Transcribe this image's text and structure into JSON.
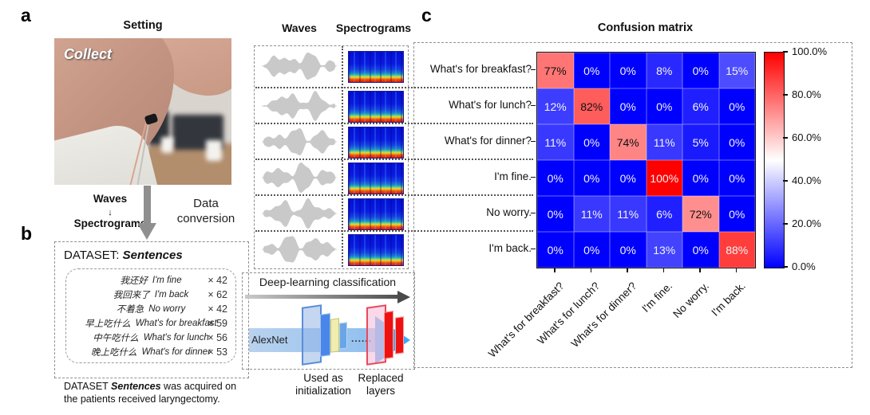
{
  "panels": {
    "a": {
      "label": "a",
      "title": "Setting",
      "photo_overlay": "Collect",
      "flow": {
        "top": "Waves",
        "arrow": "↓",
        "bottom": "Spectrograms",
        "right": "Data conversion"
      }
    },
    "b": {
      "label": "b",
      "heading_prefix": "DATASET: ",
      "heading_emph": "Sentences",
      "sentences": [
        {
          "zh": "我还好",
          "en": "I'm fine",
          "count": "× 42"
        },
        {
          "zh": "我回来了",
          "en": "I'm back",
          "count": "× 62"
        },
        {
          "zh": "不着急",
          "en": "No worry",
          "count": "× 42"
        },
        {
          "zh": "早上吃什么",
          "en": "What's for breakfast",
          "count": "× 59"
        },
        {
          "zh": "中午吃什么",
          "en": "What's for lunch",
          "count": "× 56"
        },
        {
          "zh": "晚上吃什么",
          "en": "What's for dinner",
          "count": "× 53"
        }
      ],
      "caption_prefix": "DATASET ",
      "caption_emph": "Sentences",
      "caption_suffix": " was acquired on the patients received laryngectomy."
    },
    "middle": {
      "col_headers": [
        "Waves",
        "Spectrograms"
      ],
      "rows": 6,
      "classification_label": "Deep-learning classification",
      "alexnet_label": "AlexNet",
      "dots": "......",
      "used_as": [
        "Used as",
        "initialization"
      ],
      "replaced": [
        "Replaced",
        "layers"
      ]
    },
    "c": {
      "label": "c",
      "title": "Confusion matrix"
    }
  },
  "chart_data": {
    "type": "heatmap",
    "title": "Confusion matrix",
    "categories": [
      "What's for breakfast?",
      "What's for lunch?",
      "What's for dinner?",
      "I'm fine.",
      "No worry.",
      "I'm back."
    ],
    "rows": [
      [
        77,
        0,
        0,
        8,
        0,
        15
      ],
      [
        12,
        82,
        0,
        0,
        6,
        0
      ],
      [
        11,
        0,
        74,
        11,
        5,
        0
      ],
      [
        0,
        0,
        0,
        100,
        0,
        0
      ],
      [
        0,
        11,
        11,
        6,
        72,
        0
      ],
      [
        0,
        0,
        0,
        13,
        0,
        88
      ]
    ],
    "cell_label_suffix": "%",
    "value_range": [
      0,
      100
    ],
    "colormap": "blue-white-red",
    "colorbar_ticks": [
      "100.0%",
      "80.0%",
      "60.0%",
      "40.0%",
      "20.0%",
      "0.0%"
    ],
    "legend_position": "right-colorbar"
  },
  "colors": {
    "heat_low": "#0000ff",
    "heat_mid": "#ffffff",
    "heat_high": "#ff0000",
    "waveform_gray": "#c9c9c9",
    "arrow_gray": "#8f8f8f",
    "alexnet_blue": "#3fa9f5",
    "replaced_red": "#ee1111"
  }
}
